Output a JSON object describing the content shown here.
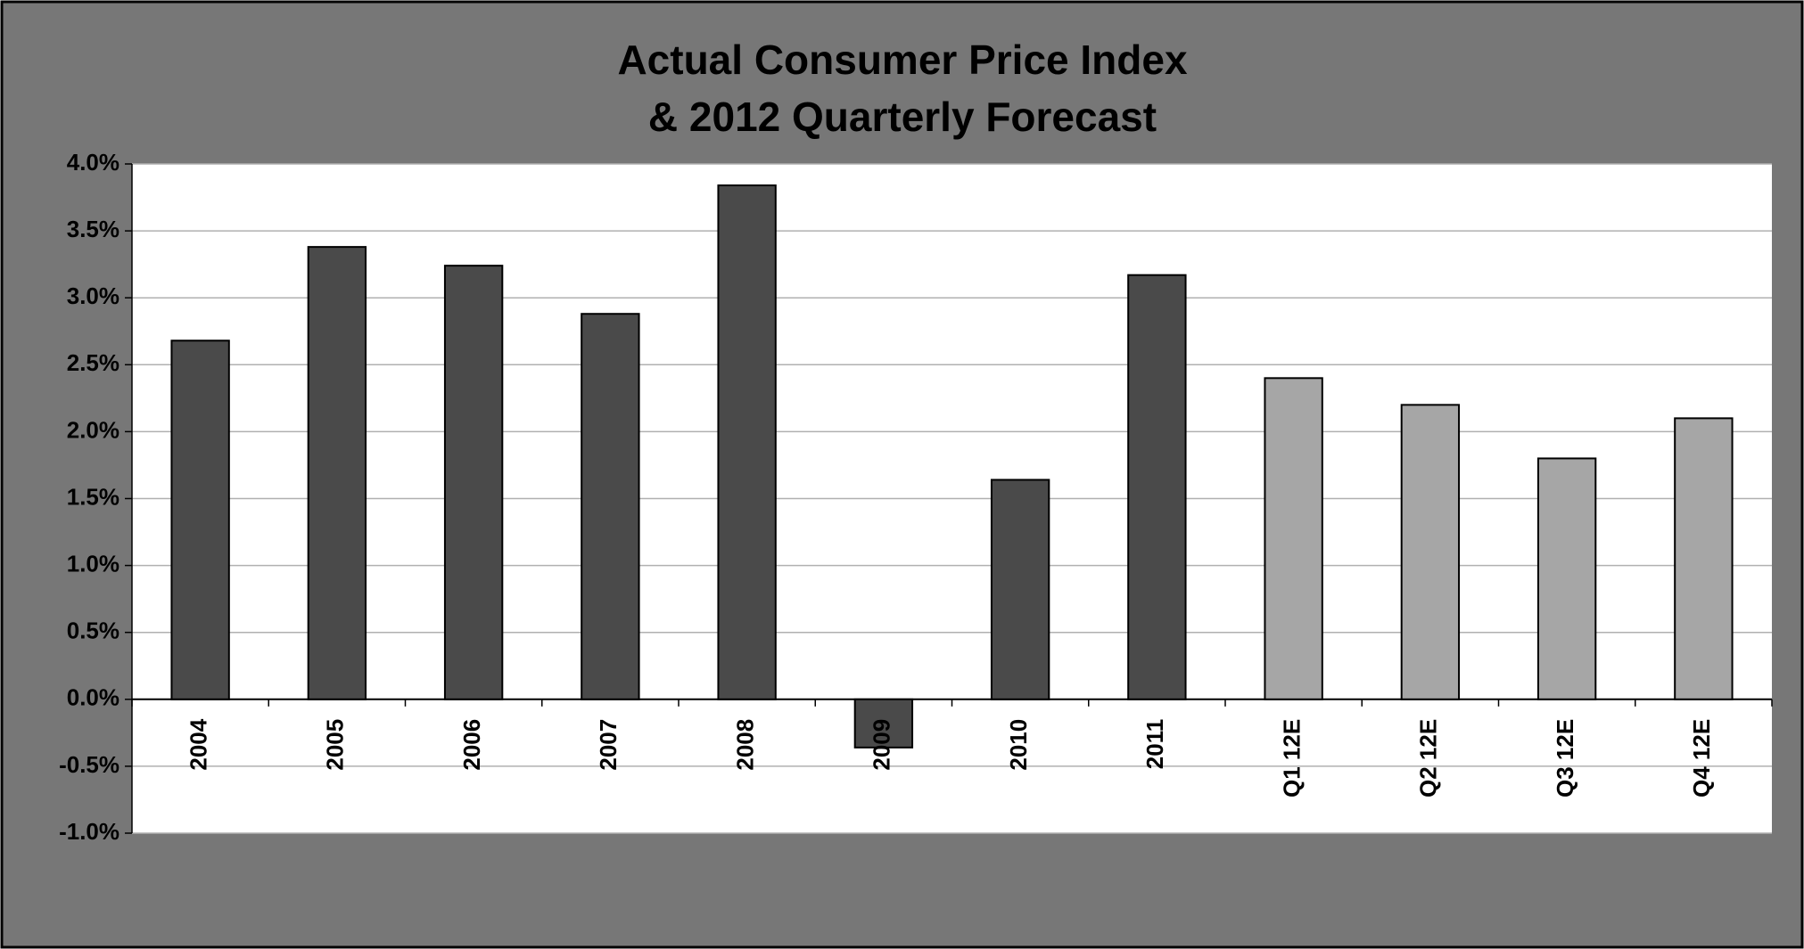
{
  "chart_data": {
    "type": "bar",
    "title": [
      "Actual Consumer Price Index",
      "& 2012 Quarterly  Forecast"
    ],
    "categories": [
      "2004",
      "2005",
      "2006",
      "2007",
      "2008",
      "2009",
      "2010",
      "2011",
      "Q1 12E",
      "Q2 12E",
      "Q3 12E",
      "Q4 12E"
    ],
    "values": [
      2.68,
      3.38,
      3.24,
      2.88,
      3.84,
      -0.36,
      1.64,
      3.17,
      2.4,
      2.2,
      1.8,
      2.1
    ],
    "colors": [
      "#4a4a4a",
      "#4a4a4a",
      "#4a4a4a",
      "#4a4a4a",
      "#4a4a4a",
      "#4a4a4a",
      "#4a4a4a",
      "#4a4a4a",
      "#a6a6a6",
      "#a6a6a6",
      "#a6a6a6",
      "#a6a6a6"
    ],
    "ylim": [
      -1,
      4
    ],
    "yticks": [
      {
        "value": -1,
        "label": "-1.0%"
      },
      {
        "value": -0.5,
        "label": "-0.5%"
      },
      {
        "value": 0,
        "label": "0.0%"
      },
      {
        "value": 0.5,
        "label": "0.5%"
      },
      {
        "value": 1,
        "label": "1.0%"
      },
      {
        "value": 1.5,
        "label": "1.5%"
      },
      {
        "value": 2,
        "label": "2.0%"
      },
      {
        "value": 2.5,
        "label": "2.5%"
      },
      {
        "value": 3,
        "label": "3.0%"
      },
      {
        "value": 3.5,
        "label": "3.5%"
      },
      {
        "value": 4,
        "label": "4.0%"
      }
    ],
    "grid": true
  }
}
